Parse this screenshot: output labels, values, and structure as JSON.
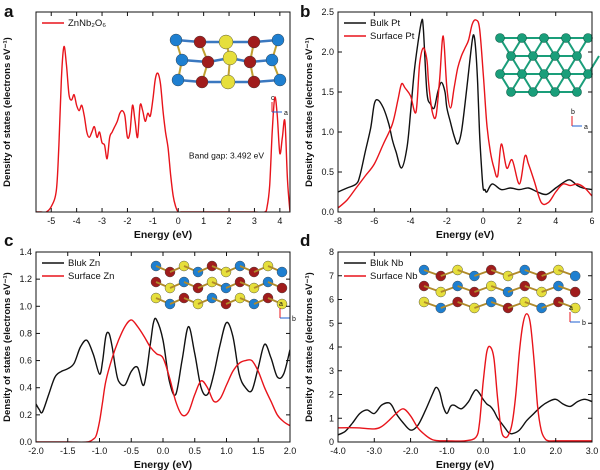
{
  "colors": {
    "black": "#111111",
    "red": "#e8141b",
    "teal": "#1a9e7a",
    "blue": "#1e7fd0",
    "dark_red": "#a01c1c",
    "yellow": "#e6df3c"
  },
  "chart_data": [
    {
      "type": "line",
      "panel_label": "a",
      "xlabel": "Energy (eV)",
      "ylabel": "Density of states (electrons eV⁻¹)",
      "xlim": [
        -5.6,
        4.4
      ],
      "ylim": [
        0,
        75
      ],
      "xticks": [
        -5,
        -4,
        -3,
        -2,
        -1,
        0,
        1,
        2,
        3,
        4
      ],
      "yticks": [],
      "legend_position": "top-left",
      "annotation": "Band gap: 3.492 eV",
      "inset": "ZnNb2O6 crystal structure (axes c, a)",
      "inset_icon": "crystal-structure-icon",
      "series": [
        {
          "name": "ZnNb₂O₆",
          "color": "#e8141b",
          "x": [
            -5.6,
            -5.4,
            -5.2,
            -5.0,
            -4.8,
            -4.7,
            -4.6,
            -4.5,
            -4.4,
            -4.3,
            -4.2,
            -4.1,
            -4.0,
            -3.9,
            -3.8,
            -3.7,
            -3.6,
            -3.5,
            -3.4,
            -3.3,
            -3.2,
            -3.1,
            -3.0,
            -2.9,
            -2.8,
            -2.7,
            -2.6,
            -2.5,
            -2.4,
            -2.3,
            -2.2,
            -2.1,
            -2.0,
            -1.9,
            -1.8,
            -1.7,
            -1.6,
            -1.5,
            -1.4,
            -1.3,
            -1.2,
            -1.1,
            -1.0,
            -0.9,
            -0.8,
            -0.7,
            -0.6,
            -0.5,
            -0.4,
            -0.3,
            -0.2,
            -0.1,
            0.0,
            0.1,
            0.2,
            0.3,
            1.0,
            2.0,
            3.0,
            3.4,
            3.5,
            3.6,
            3.7,
            3.8,
            3.9,
            4.0,
            4.1,
            4.2,
            4.3,
            4.4
          ],
          "y": [
            0,
            0,
            0,
            2,
            8,
            25,
            50,
            62,
            55,
            44,
            42,
            44,
            40,
            38,
            40,
            36,
            30,
            28,
            30,
            32,
            28,
            30,
            26,
            25,
            20,
            28,
            30,
            32,
            34,
            37,
            38,
            36,
            28,
            30,
            40,
            34,
            28,
            40,
            38,
            34,
            37,
            36,
            42,
            50,
            52,
            48,
            38,
            30,
            24,
            14,
            6,
            2,
            0,
            0,
            0,
            0,
            0,
            0,
            0,
            0,
            2,
            10,
            30,
            43,
            36,
            22,
            28,
            34,
            12,
            0
          ]
        }
      ]
    },
    {
      "type": "line",
      "panel_label": "b",
      "xlabel": "Energy (eV)",
      "ylabel": "Density of states (electrons eV⁻¹)",
      "xlim": [
        -8,
        6
      ],
      "ylim": [
        0,
        2.5
      ],
      "xticks": [
        -8,
        -6,
        -4,
        -2,
        0,
        2,
        4,
        6
      ],
      "yticks": [
        0.0,
        0.5,
        1.0,
        1.5,
        2.0,
        2.5
      ],
      "xtick_labels": [
        "-8",
        "-6",
        "-4",
        "-2",
        "0",
        "2",
        "4",
        "6"
      ],
      "ytick_labels": [
        "0.0",
        "0.5",
        "1.0",
        "1.5",
        "2.0",
        "2.5"
      ],
      "legend_position": "top-left",
      "inset": "Pt surface structure (axes b, a)",
      "inset_icon": "pt-lattice-icon",
      "series": [
        {
          "name": "Bulk Pt",
          "color": "#111111",
          "x": [
            -8.0,
            -7.5,
            -7.0,
            -6.8,
            -6.5,
            -6.2,
            -6.0,
            -5.8,
            -5.5,
            -5.2,
            -5.0,
            -4.8,
            -4.5,
            -4.2,
            -4.0,
            -3.8,
            -3.6,
            -3.4,
            -3.3,
            -3.1,
            -2.9,
            -2.7,
            -2.5,
            -2.3,
            -2.1,
            -2.0,
            -1.8,
            -1.6,
            -1.4,
            -1.2,
            -1.0,
            -0.8,
            -0.6,
            -0.5,
            -0.4,
            -0.3,
            -0.2,
            -0.1,
            0.0,
            0.1,
            0.2,
            0.5,
            1.0,
            1.5,
            2.0,
            2.5,
            3.0,
            3.5,
            4.0,
            4.5,
            4.8,
            5.2,
            5.5,
            6.0
          ],
          "y": [
            0.25,
            0.3,
            0.35,
            0.45,
            0.75,
            1.05,
            1.35,
            1.4,
            1.3,
            1.1,
            0.9,
            0.75,
            0.55,
            0.8,
            1.25,
            1.75,
            2.1,
            2.38,
            2.3,
            1.5,
            1.35,
            1.3,
            1.5,
            1.62,
            1.5,
            1.3,
            1.12,
            0.95,
            0.85,
            1.0,
            1.35,
            1.75,
            2.15,
            2.2,
            2.0,
            1.6,
            1.0,
            0.6,
            0.3,
            0.28,
            0.25,
            0.35,
            0.28,
            0.3,
            0.28,
            0.3,
            0.25,
            0.22,
            0.3,
            0.38,
            0.4,
            0.33,
            0.3,
            0.28
          ]
        },
        {
          "name": "Surface Pt",
          "color": "#e8141b",
          "x": [
            -8.0,
            -7.5,
            -7.0,
            -6.5,
            -6.0,
            -5.5,
            -5.0,
            -4.7,
            -4.5,
            -4.3,
            -4.0,
            -3.7,
            -3.5,
            -3.3,
            -3.1,
            -3.0,
            -2.8,
            -2.6,
            -2.4,
            -2.2,
            -2.0,
            -1.8,
            -1.6,
            -1.4,
            -1.2,
            -1.0,
            -0.8,
            -0.6,
            -0.4,
            -0.2,
            0.0,
            0.2,
            0.4,
            0.6,
            0.8,
            1.0,
            1.3,
            1.6,
            2.0,
            2.3,
            2.5,
            2.8,
            3.2,
            3.6,
            4.0,
            4.4,
            4.8,
            5.2,
            5.6,
            6.0
          ],
          "y": [
            0.05,
            0.15,
            0.3,
            0.45,
            0.6,
            0.85,
            1.1,
            1.4,
            1.6,
            1.55,
            1.45,
            1.25,
            1.85,
            2.05,
            1.9,
            1.6,
            1.25,
            1.2,
            1.65,
            2.2,
            1.55,
            1.3,
            1.55,
            1.8,
            1.95,
            2.05,
            2.15,
            2.35,
            2.4,
            2.3,
            1.75,
            1.1,
            0.75,
            0.55,
            0.45,
            0.85,
            0.55,
            0.65,
            0.35,
            0.7,
            0.6,
            0.4,
            0.12,
            0.12,
            0.25,
            0.35,
            0.33,
            0.35,
            0.3,
            0.2
          ]
        }
      ]
    },
    {
      "type": "line",
      "panel_label": "c",
      "xlabel": "Energy (eV)",
      "ylabel": "Density of states (electrons eV⁻¹)",
      "xlim": [
        -2.0,
        2.0
      ],
      "ylim": [
        0,
        1.4
      ],
      "xticks": [
        -2.0,
        -1.5,
        -1.0,
        -0.5,
        0.0,
        0.5,
        1.0,
        1.5,
        2.0
      ],
      "yticks": [
        0.0,
        0.2,
        0.4,
        0.6,
        0.8,
        1.0,
        1.2,
        1.4
      ],
      "xtick_labels": [
        "-2.0",
        "-1.5",
        "-1.0",
        "-0.5",
        "0.0",
        "0.5",
        "1.0",
        "1.5",
        "2.0"
      ],
      "ytick_labels": [
        "0.0",
        "0.2",
        "0.4",
        "0.6",
        "0.8",
        "1.0",
        "1.2",
        "1.4"
      ],
      "legend_position": "top-left",
      "inset": "ZnNb2O6 surface structure with Zn (axes a, b)",
      "inset_icon": "zn-surface-structure-icon",
      "series": [
        {
          "name": "Bluk Zn",
          "color": "#111111",
          "x": [
            -2.0,
            -1.95,
            -1.9,
            -1.8,
            -1.7,
            -1.6,
            -1.5,
            -1.4,
            -1.3,
            -1.2,
            -1.1,
            -1.0,
            -0.95,
            -0.9,
            -0.85,
            -0.8,
            -0.75,
            -0.7,
            -0.6,
            -0.5,
            -0.4,
            -0.3,
            -0.2,
            -0.15,
            -0.1,
            0.0,
            0.1,
            0.2,
            0.3,
            0.4,
            0.5,
            0.6,
            0.7,
            0.8,
            0.9,
            1.0,
            1.1,
            1.2,
            1.3,
            1.4,
            1.5,
            1.6,
            1.7,
            1.8,
            1.9,
            2.0
          ],
          "y": [
            0.28,
            0.24,
            0.22,
            0.35,
            0.48,
            0.52,
            0.54,
            0.58,
            0.7,
            0.75,
            0.65,
            0.5,
            0.6,
            0.78,
            0.8,
            0.7,
            0.55,
            0.45,
            0.42,
            0.52,
            0.55,
            0.42,
            0.72,
            0.88,
            0.9,
            0.75,
            0.45,
            0.35,
            0.6,
            0.85,
            0.65,
            0.4,
            0.35,
            0.5,
            0.72,
            0.88,
            0.78,
            0.5,
            0.4,
            0.38,
            0.55,
            0.72,
            0.62,
            0.48,
            0.5,
            0.68
          ]
        },
        {
          "name": "Surface Zn",
          "color": "#e8141b",
          "x": [
            -2.0,
            -1.5,
            -1.2,
            -1.1,
            -1.05,
            -1.0,
            -0.95,
            -0.9,
            -0.8,
            -0.7,
            -0.6,
            -0.5,
            -0.4,
            -0.3,
            -0.2,
            -0.1,
            0.0,
            0.1,
            0.2,
            0.3,
            0.4,
            0.5,
            0.6,
            0.7,
            0.8,
            0.9,
            1.0,
            1.1,
            1.2,
            1.3,
            1.4,
            1.5,
            1.6,
            1.7,
            1.8,
            1.9,
            2.0
          ],
          "y": [
            0.0,
            0.0,
            0.0,
            0.02,
            0.05,
            0.15,
            0.3,
            0.45,
            0.62,
            0.75,
            0.85,
            0.9,
            0.85,
            0.78,
            0.7,
            0.65,
            0.62,
            0.48,
            0.3,
            0.2,
            0.22,
            0.35,
            0.45,
            0.4,
            0.3,
            0.32,
            0.42,
            0.52,
            0.58,
            0.6,
            0.6,
            0.52,
            0.4,
            0.3,
            0.2,
            0.15,
            0.12
          ]
        }
      ]
    },
    {
      "type": "line",
      "panel_label": "d",
      "xlabel": "Energy (eV)",
      "ylabel": "Density of states (electrons eV⁻¹)",
      "xlim": [
        -4.0,
        3.0
      ],
      "ylim": [
        0,
        8
      ],
      "xticks": [
        -4.0,
        -3.0,
        -2.0,
        -1.0,
        0.0,
        1.0,
        2.0,
        3.0
      ],
      "yticks": [
        0,
        1,
        2,
        3,
        4,
        5,
        6,
        7,
        8
      ],
      "xtick_labels": [
        "-4.0",
        "-3.0",
        "-2.0",
        "-1.0",
        "0.0",
        "1.0",
        "2.0",
        "3.0"
      ],
      "ytick_labels": [
        "0",
        "1",
        "2",
        "3",
        "4",
        "5",
        "6",
        "7",
        "8"
      ],
      "legend_position": "top-left",
      "inset": "ZnNb2O6 surface structure with Nb (axes a, b)",
      "inset_icon": "nb-surface-structure-icon",
      "series": [
        {
          "name": "Bluk Nb",
          "color": "#111111",
          "x": [
            -4.0,
            -3.8,
            -3.6,
            -3.4,
            -3.2,
            -3.0,
            -2.8,
            -2.6,
            -2.5,
            -2.4,
            -2.2,
            -2.0,
            -1.8,
            -1.6,
            -1.4,
            -1.3,
            -1.2,
            -1.1,
            -1.0,
            -0.9,
            -0.8,
            -0.6,
            -0.4,
            -0.3,
            -0.2,
            -0.1,
            0.0,
            0.1,
            0.2,
            0.3,
            0.4,
            0.5,
            0.6,
            0.7,
            0.8,
            1.0,
            1.2,
            1.4,
            1.6,
            1.8,
            2.0,
            2.2,
            2.4,
            2.6,
            2.8,
            3.0
          ],
          "y": [
            0.3,
            0.45,
            0.8,
            1.2,
            1.35,
            1.2,
            1.55,
            1.65,
            1.5,
            1.2,
            0.8,
            0.5,
            0.7,
            1.3,
            2.0,
            2.3,
            2.1,
            1.5,
            1.2,
            1.5,
            1.55,
            1.4,
            1.7,
            2.0,
            2.2,
            2.05,
            1.8,
            1.6,
            1.5,
            1.3,
            1.0,
            0.8,
            0.6,
            0.4,
            0.35,
            0.5,
            0.9,
            1.2,
            1.5,
            1.7,
            1.8,
            1.6,
            1.5,
            1.7,
            1.8,
            1.7
          ]
        },
        {
          "name": "Surface Nb",
          "color": "#e8141b",
          "x": [
            -4.0,
            -3.5,
            -3.0,
            -2.8,
            -2.6,
            -2.4,
            -2.2,
            -2.0,
            -1.8,
            -1.6,
            -1.4,
            -1.2,
            -1.0,
            -0.5,
            -0.2,
            -0.1,
            0.0,
            0.1,
            0.2,
            0.3,
            0.4,
            0.5,
            0.6,
            0.7,
            0.8,
            0.9,
            1.0,
            1.1,
            1.2,
            1.3,
            1.4,
            1.5,
            1.6,
            1.7,
            1.8,
            2.0,
            2.5,
            3.0
          ],
          "y": [
            0.6,
            0.6,
            0.55,
            0.65,
            0.9,
            1.2,
            1.4,
            1.1,
            0.6,
            0.3,
            0.1,
            0.05,
            0.05,
            0.05,
            0.2,
            0.8,
            2.5,
            3.8,
            4.0,
            3.5,
            1.8,
            0.5,
            0.2,
            0.3,
            0.8,
            2.0,
            3.8,
            5.0,
            5.4,
            5.0,
            3.5,
            1.5,
            0.5,
            0.15,
            0.05,
            0.05,
            0.05,
            0.05
          ]
        }
      ]
    }
  ]
}
